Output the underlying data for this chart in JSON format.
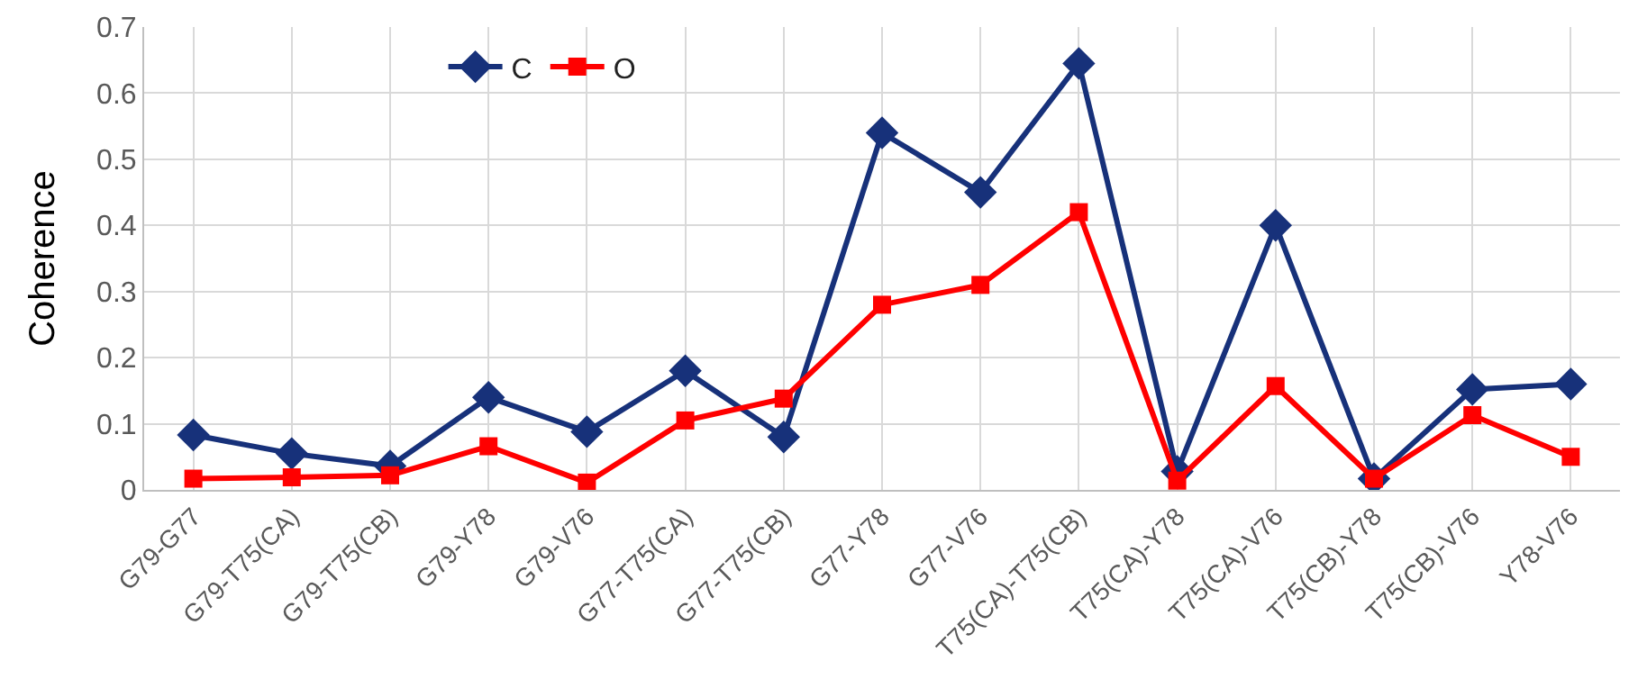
{
  "chart_data": {
    "type": "line",
    "ylabel": "Coherence",
    "categories": [
      "G79-G77",
      "G79-T75(CA)",
      "G79-T75(CB)",
      "G79-Y78",
      "G79-V76",
      "G77-T75(CA)",
      "G77-T75(CB)",
      "G77-Y78",
      "G77-V76",
      "T75(CA)-T75(CB)",
      "T75(CA)-Y78",
      "T75(CA)-V76",
      "T75(CB)-Y78",
      "T75(CB)-V76",
      "Y78-V76"
    ],
    "series": [
      {
        "name": "C",
        "color": "#17317a",
        "marker": "diamond",
        "values": [
          0.083,
          0.055,
          0.036,
          0.14,
          0.088,
          0.18,
          0.08,
          0.54,
          0.45,
          0.645,
          0.028,
          0.4,
          0.017,
          0.152,
          0.16
        ]
      },
      {
        "name": "O",
        "color": "#ff0000",
        "marker": "square",
        "values": [
          0.017,
          0.019,
          0.022,
          0.066,
          0.011,
          0.105,
          0.138,
          0.28,
          0.31,
          0.42,
          0.014,
          0.157,
          0.017,
          0.113,
          0.05
        ]
      }
    ],
    "ylim": [
      0,
      0.7
    ],
    "yticks": [
      {
        "value": 0,
        "label": "0"
      },
      0.1,
      0.2,
      0.3,
      0.4,
      0.5,
      0.6,
      0.7
    ],
    "grid": true,
    "legend": "top left",
    "line_style": "solid"
  }
}
